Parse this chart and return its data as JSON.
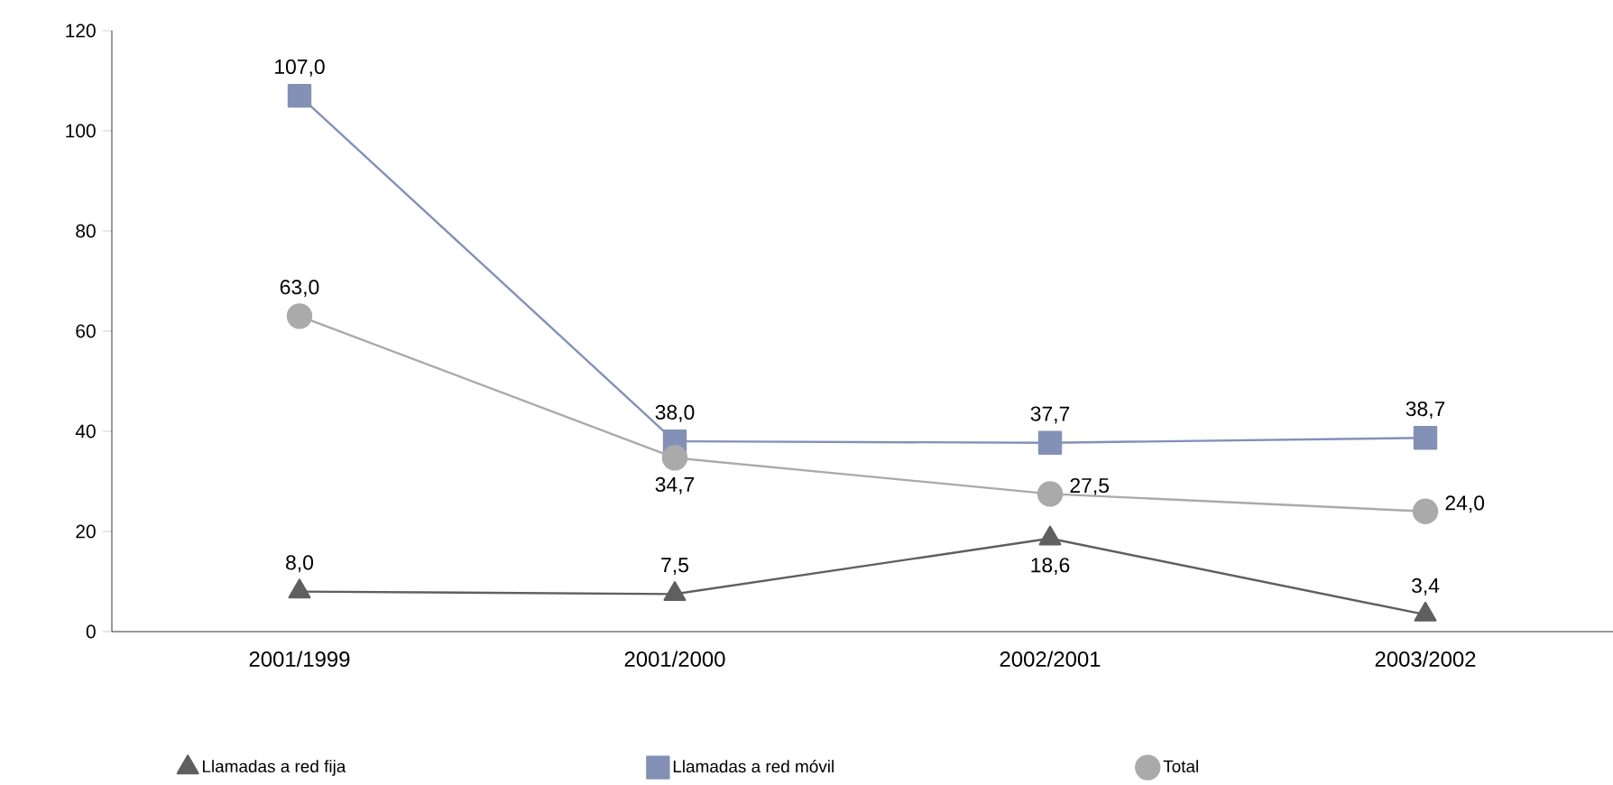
{
  "chart_data": {
    "type": "line",
    "categories": [
      "2001/1999",
      "2001/2000",
      "2002/2001",
      "2003/2002"
    ],
    "series": [
      {
        "name": "Llamadas a red fija",
        "color": "#5f5f5f",
        "marker": "triangle",
        "values": [
          8.0,
          7.5,
          18.6,
          3.4
        ],
        "value_labels": [
          "8,0",
          "7,5",
          "18,6",
          "3,4"
        ]
      },
      {
        "name": "Llamadas a red móvil",
        "color": "#8391b7",
        "marker": "square",
        "values": [
          107.0,
          38.0,
          37.7,
          38.7
        ],
        "value_labels": [
          "107,0",
          "38,0",
          "37,7",
          "38,7"
        ]
      },
      {
        "name": "Total",
        "color": "#aaaaaa",
        "marker": "circle",
        "values": [
          63.0,
          34.7,
          27.5,
          24.0
        ],
        "value_labels": [
          "63,0",
          "34,7",
          "27,5",
          "24,0"
        ]
      }
    ],
    "ylim": [
      0,
      120
    ],
    "yticks": [
      0,
      20,
      40,
      60,
      80,
      100,
      120
    ],
    "grid": false,
    "legend": "bottom"
  }
}
